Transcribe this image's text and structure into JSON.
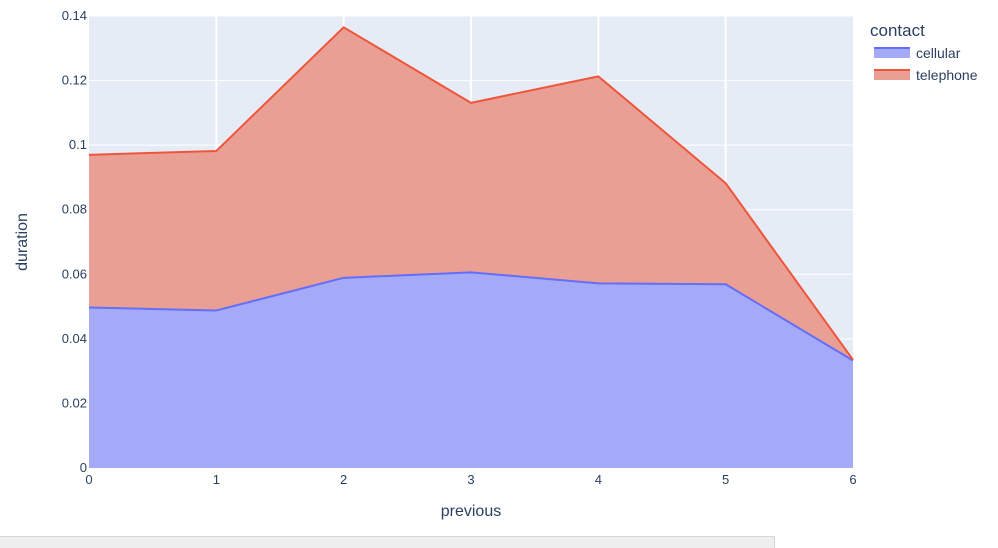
{
  "chart_data": {
    "type": "area",
    "stacked": true,
    "x": [
      0,
      1,
      2,
      3,
      4,
      5,
      6
    ],
    "xlabel": "previous",
    "ylabel": "duration",
    "xlim": [
      0,
      6
    ],
    "ylim": [
      0,
      0.14
    ],
    "x_ticks": [
      "0",
      "1",
      "2",
      "3",
      "4",
      "5",
      "6"
    ],
    "y_ticks": [
      {
        "value": 0,
        "label": "0"
      },
      {
        "value": 0.02,
        "label": "0.02"
      },
      {
        "value": 0.04,
        "label": "0.04"
      },
      {
        "value": 0.06,
        "label": "0.06"
      },
      {
        "value": 0.08,
        "label": "0.08"
      },
      {
        "value": 0.1,
        "label": "0.1"
      },
      {
        "value": 0.12,
        "label": "0.12"
      },
      {
        "value": 0.14,
        "label": "0.14"
      }
    ],
    "grid": true,
    "legend_title": "contact",
    "legend_position": "right",
    "series": [
      {
        "name": "cellular",
        "values": [
          0.0497,
          0.0488,
          0.0589,
          0.0606,
          0.0572,
          0.0569,
          0.0333
        ],
        "line_color": "#636efa",
        "fill_color": "#a4aaf8"
      },
      {
        "name": "telephone",
        "values": [
          0.0473,
          0.0494,
          0.0776,
          0.0525,
          0.0641,
          0.0313,
          0.0002
        ],
        "line_color": "#ef553b",
        "fill_color": "#ea9f95"
      }
    ]
  },
  "colors": {
    "plot_background": "#e5ecf6",
    "grid": "#ffffff",
    "text": "#2a3f5f"
  }
}
